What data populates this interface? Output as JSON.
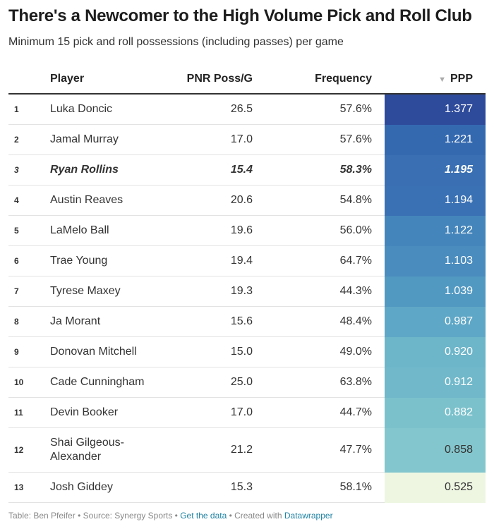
{
  "header": {
    "title": "There's a Newcomer to the High Volume Pick and Roll Club",
    "subtitle": "Minimum 15 pick and roll possessions (including passes) per game"
  },
  "table": {
    "columns": [
      "",
      "Player",
      "PNR Poss/G",
      "Frequency",
      "PPP"
    ],
    "rows": [
      {
        "rank": "1",
        "player": "Luka Doncic",
        "poss": "26.5",
        "freq": "57.6%",
        "ppp": "1.377",
        "color": "#2e4a9a",
        "text_color": "#ffffff"
      },
      {
        "rank": "2",
        "player": "Jamal Murray",
        "poss": "17.0",
        "freq": "57.6%",
        "ppp": "1.221",
        "color": "#3469b0",
        "text_color": "#ffffff"
      },
      {
        "rank": "3",
        "player": "Ryan Rollins",
        "poss": "15.4",
        "freq": "58.3%",
        "ppp": "1.195",
        "color": "#3a70b3",
        "text_color": "#ffffff",
        "bold": true
      },
      {
        "rank": "4",
        "player": "Austin Reaves",
        "poss": "20.6",
        "freq": "54.8%",
        "ppp": "1.194",
        "color": "#3a71b4",
        "text_color": "#ffffff"
      },
      {
        "rank": "5",
        "player": "LaMelo Ball",
        "poss": "19.6",
        "freq": "56.0%",
        "ppp": "1.122",
        "color": "#4485bb",
        "text_color": "#ffffff"
      },
      {
        "rank": "6",
        "player": "Trae Young",
        "poss": "19.4",
        "freq": "64.7%",
        "ppp": "1.103",
        "color": "#4a8cbe",
        "text_color": "#ffffff"
      },
      {
        "rank": "7",
        "player": "Tyrese Maxey",
        "poss": "19.3",
        "freq": "44.3%",
        "ppp": "1.039",
        "color": "#5299c2",
        "text_color": "#ffffff"
      },
      {
        "rank": "8",
        "player": "Ja Morant",
        "poss": "15.6",
        "freq": "48.4%",
        "ppp": "0.987",
        "color": "#5fa7c6",
        "text_color": "#ffffff"
      },
      {
        "rank": "9",
        "player": "Donovan Mitchell",
        "poss": "15.0",
        "freq": "49.0%",
        "ppp": "0.920",
        "color": "#6db5c9",
        "text_color": "#ffffff"
      },
      {
        "rank": "10",
        "player": "Cade Cunningham",
        "poss": "25.0",
        "freq": "63.8%",
        "ppp": "0.912",
        "color": "#70b8ca",
        "text_color": "#ffffff"
      },
      {
        "rank": "11",
        "player": "Devin Booker",
        "poss": "17.0",
        "freq": "44.7%",
        "ppp": "0.882",
        "color": "#7bc1cc",
        "text_color": "#ffffff"
      },
      {
        "rank": "12",
        "player": "Shai Gilgeous-Alexander",
        "poss": "21.2",
        "freq": "47.7%",
        "ppp": "0.858",
        "color": "#84c6cd",
        "text_color": "#333333"
      },
      {
        "rank": "13",
        "player": "Josh Giddey",
        "poss": "15.3",
        "freq": "58.1%",
        "ppp": "0.525",
        "color": "#eef6e2",
        "text_color": "#333333"
      }
    ]
  },
  "footer": {
    "byline": "Table: Ben Pfeifer",
    "source": "Source: Synergy Sports",
    "get_data": "Get the data",
    "created_with": "Created with",
    "tool": "Datawrapper"
  }
}
